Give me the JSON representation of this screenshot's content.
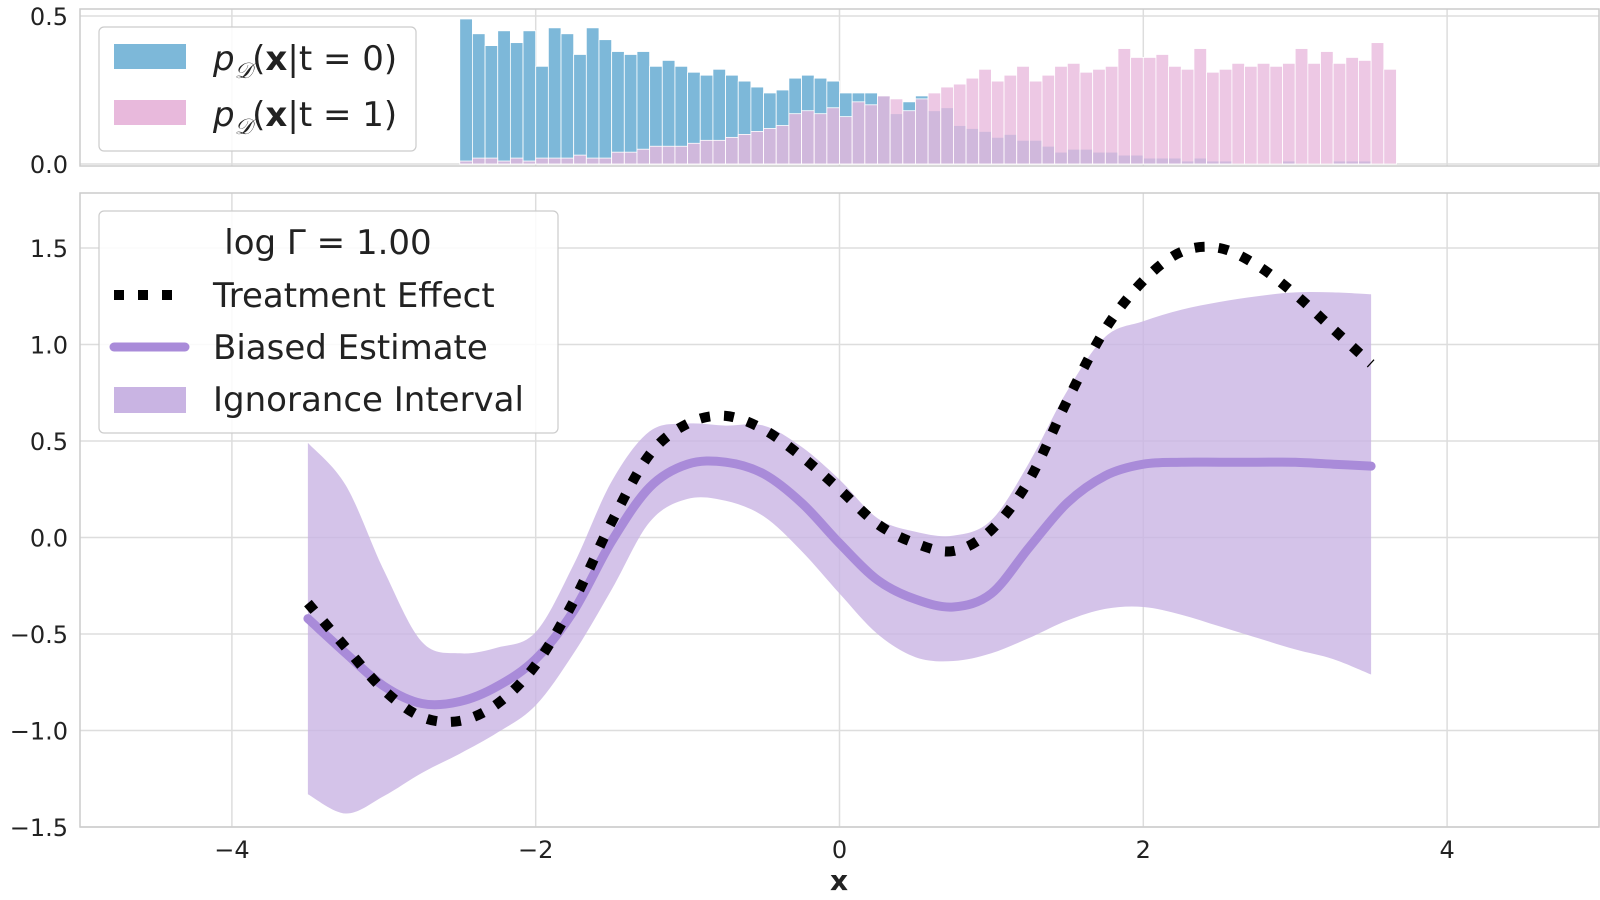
{
  "chart_data": [
    {
      "type": "bar",
      "panel": "top",
      "xlim": [
        -5,
        5
      ],
      "ylim": [
        0,
        0.5
      ],
      "yticks": [
        "0.0",
        "0.5"
      ],
      "ytick_values": [
        0,
        0.5
      ],
      "grid": true,
      "legend_placement": "upper-left",
      "bin_start": -2.5,
      "bin_width": 0.083333,
      "series": [
        {
          "name": "p_D(x|t = 0)",
          "color": "#7db8d9",
          "values": [
            0.49,
            0.44,
            0.4,
            0.45,
            0.41,
            0.45,
            0.33,
            0.46,
            0.44,
            0.37,
            0.46,
            0.42,
            0.38,
            0.37,
            0.38,
            0.33,
            0.35,
            0.33,
            0.31,
            0.3,
            0.32,
            0.3,
            0.28,
            0.26,
            0.24,
            0.25,
            0.29,
            0.3,
            0.29,
            0.28,
            0.24,
            0.24,
            0.24,
            0.23,
            0.17,
            0.21,
            0.23,
            0.18,
            0.19,
            0.13,
            0.12,
            0.11,
            0.09,
            0.1,
            0.08,
            0.08,
            0.06,
            0.04,
            0.05,
            0.05,
            0.04,
            0.04,
            0.03,
            0.03,
            0.02,
            0.02,
            0.02,
            0.01,
            0.02,
            0.01,
            0.01,
            0.0,
            0.0,
            0.0,
            0.0,
            0.01,
            0.0,
            0.0,
            0.0,
            0.01,
            0.01,
            0.01
          ]
        },
        {
          "name": "p_D(x|t = 1)",
          "color": "#e8b9dc",
          "values": [
            0.01,
            0.02,
            0.02,
            0.01,
            0.02,
            0.01,
            0.02,
            0.02,
            0.02,
            0.03,
            0.02,
            0.02,
            0.04,
            0.04,
            0.05,
            0.06,
            0.06,
            0.06,
            0.07,
            0.08,
            0.08,
            0.09,
            0.1,
            0.11,
            0.12,
            0.13,
            0.17,
            0.18,
            0.17,
            0.19,
            0.16,
            0.21,
            0.2,
            0.23,
            0.22,
            0.18,
            0.22,
            0.24,
            0.26,
            0.27,
            0.29,
            0.32,
            0.28,
            0.3,
            0.33,
            0.28,
            0.3,
            0.33,
            0.34,
            0.31,
            0.32,
            0.33,
            0.39,
            0.36,
            0.36,
            0.37,
            0.33,
            0.32,
            0.39,
            0.31,
            0.32,
            0.34,
            0.33,
            0.34,
            0.33,
            0.34,
            0.39,
            0.34,
            0.38,
            0.34,
            0.36,
            0.35,
            0.41,
            0.32
          ]
        }
      ]
    },
    {
      "type": "line",
      "panel": "bottom",
      "xlabel": "x",
      "xlim": [
        -5,
        5
      ],
      "ylim": [
        -1.5,
        1.8
      ],
      "xticks": [
        "−4",
        "−2",
        "0",
        "2",
        "4"
      ],
      "xtick_values": [
        -4,
        -2,
        0,
        2,
        4
      ],
      "yticks": [
        "−1.5",
        "−1.0",
        "−0.5",
        "0.0",
        "0.5",
        "1.0",
        "1.5"
      ],
      "ytick_values": [
        -1.5,
        -1.0,
        -0.5,
        0.0,
        0.5,
        1.0,
        1.5
      ],
      "grid": true,
      "legend_title": "log Γ = 1.00",
      "legend_placement": "upper-left",
      "x": [
        -3.5,
        -3.25,
        -3.0,
        -2.75,
        -2.5,
        -2.25,
        -2.0,
        -1.75,
        -1.5,
        -1.25,
        -1.0,
        -0.75,
        -0.5,
        -0.25,
        0.0,
        0.25,
        0.5,
        0.75,
        1.0,
        1.25,
        1.5,
        1.75,
        2.0,
        2.25,
        2.5,
        2.75,
        3.0,
        3.25,
        3.5
      ],
      "series": [
        {
          "name": "Treatment Effect",
          "color": "#000000",
          "style": "dotted",
          "values": [
            -0.34,
            -0.57,
            -0.79,
            -0.93,
            -0.95,
            -0.86,
            -0.66,
            -0.33,
            0.08,
            0.43,
            0.59,
            0.63,
            0.56,
            0.42,
            0.25,
            0.07,
            -0.03,
            -0.07,
            0.04,
            0.3,
            0.71,
            1.08,
            1.33,
            1.48,
            1.5,
            1.41,
            1.26,
            1.08,
            0.9
          ]
        },
        {
          "name": "Biased Estimate",
          "color": "#a98bd9",
          "style": "solid",
          "values": [
            -0.42,
            -0.6,
            -0.77,
            -0.86,
            -0.85,
            -0.77,
            -0.63,
            -0.38,
            -0.02,
            0.26,
            0.38,
            0.39,
            0.33,
            0.18,
            -0.03,
            -0.22,
            -0.32,
            -0.36,
            -0.29,
            -0.05,
            0.18,
            0.32,
            0.38,
            0.39,
            0.39,
            0.39,
            0.39,
            0.38,
            0.37
          ]
        },
        {
          "name": "Ignorance Interval",
          "color": "#c9b4e3",
          "style": "band",
          "lower": [
            -1.33,
            -1.43,
            -1.34,
            -1.22,
            -1.12,
            -1.01,
            -0.87,
            -0.6,
            -0.27,
            0.08,
            0.2,
            0.19,
            0.11,
            -0.07,
            -0.29,
            -0.5,
            -0.62,
            -0.64,
            -0.6,
            -0.52,
            -0.43,
            -0.37,
            -0.36,
            -0.4,
            -0.46,
            -0.52,
            -0.58,
            -0.63,
            -0.71
          ],
          "upper": [
            0.49,
            0.27,
            -0.17,
            -0.54,
            -0.6,
            -0.57,
            -0.49,
            -0.14,
            0.29,
            0.55,
            0.59,
            0.58,
            0.58,
            0.47,
            0.3,
            0.1,
            0.03,
            0.01,
            0.09,
            0.39,
            0.76,
            1.04,
            1.12,
            1.18,
            1.22,
            1.25,
            1.27,
            1.27,
            1.26
          ]
        }
      ]
    }
  ],
  "legend_top": [
    {
      "prefix": "p",
      "subscript": "𝒟",
      "open": "(",
      "bold": "x",
      "rest": "|t = 0)"
    },
    {
      "prefix": "p",
      "subscript": "𝒟",
      "open": "(",
      "bold": "x",
      "rest": "|t = 1)"
    }
  ],
  "legend_bottom": {
    "title": "log Γ = 1.00",
    "items": [
      "Treatment Effect",
      "Biased Estimate",
      "Ignorance Interval"
    ]
  }
}
